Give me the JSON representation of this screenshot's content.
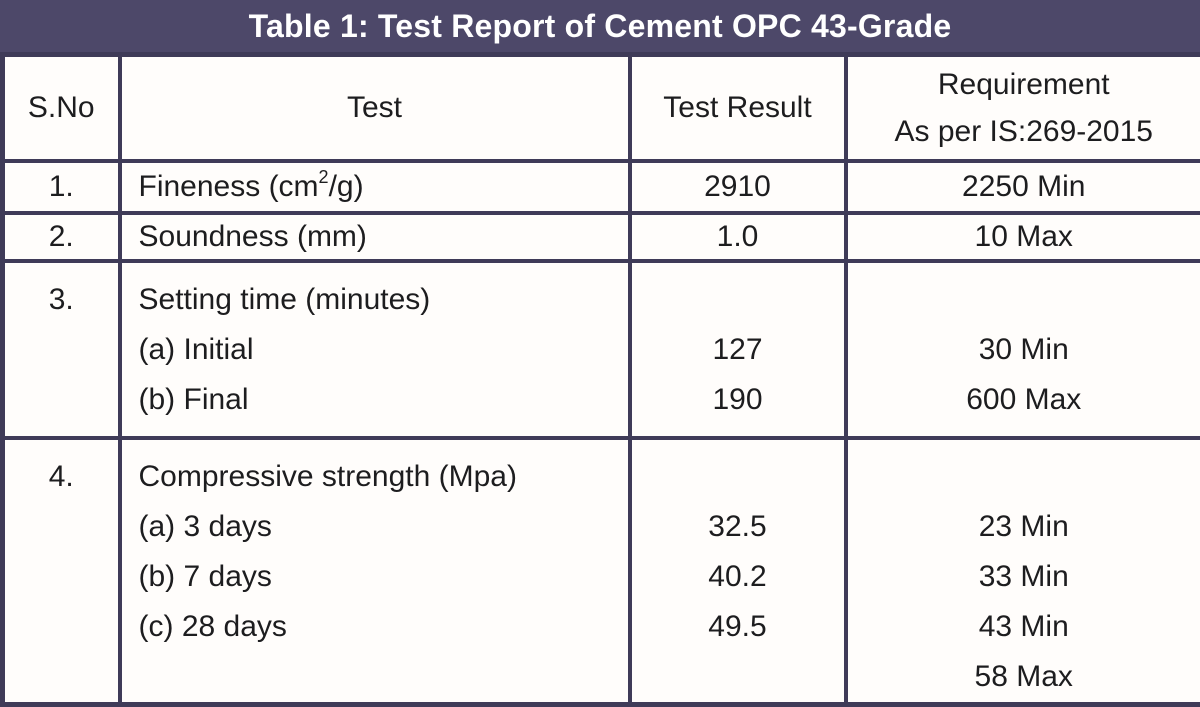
{
  "title": "Table 1: Test Report of Cement OPC 43-Grade",
  "colors": {
    "band": "#4d4869",
    "border": "#3f3b58",
    "text": "#1d1d1f",
    "cell_bg": "#fffdfb",
    "title_text": "#ffffff"
  },
  "header": {
    "sno": "S.No",
    "test": "Test",
    "result": "Test Result",
    "requirement_line1": "Requirement",
    "requirement_line2": "As per IS:269-2015"
  },
  "rows": [
    {
      "sno": "1.",
      "test_prefix": "Fineness (cm",
      "test_superscript": "2",
      "test_suffix": "/g)",
      "result": "2910",
      "requirement": "2250 Min"
    },
    {
      "sno": "2.",
      "test": "Soundness (mm)",
      "result": "1.0",
      "requirement": "10 Max"
    },
    {
      "sno": "3.",
      "test_lines": [
        "Setting time (minutes)",
        "(a) Initial",
        "(b) Final"
      ],
      "result_lines": [
        "",
        "127",
        "190"
      ],
      "requirement_lines": [
        "",
        "30 Min",
        "600 Max"
      ]
    },
    {
      "sno": "4.",
      "test_lines": [
        "Compressive strength (Mpa)",
        "(a) 3 days",
        "(b) 7 days",
        "(c) 28 days"
      ],
      "result_lines": [
        "",
        "32.5",
        "40.2",
        "49.5"
      ],
      "requirement_lines": [
        "",
        "23 Min",
        "33 Min",
        "43 Min",
        "58 Max"
      ]
    }
  ],
  "chart_data": {
    "type": "table",
    "title": "Table 1: Test Report of Cement OPC 43-Grade",
    "columns": [
      "S.No",
      "Test",
      "Test Result",
      "Requirement As per IS:269-2015"
    ],
    "rows": [
      [
        "1.",
        "Fineness (cm²/g)",
        "2910",
        "2250 Min"
      ],
      [
        "2.",
        "Soundness (mm)",
        "1.0",
        "10 Max"
      ],
      [
        "3.",
        "Setting time (minutes): (a) Initial; (b) Final",
        "127; 190",
        "30 Min; 600 Max"
      ],
      [
        "4.",
        "Compressive strength (Mpa): (a) 3 days; (b) 7 days; (c) 28 days",
        "32.5; 40.2; 49.5",
        "23 Min; 33 Min; 43 Min; 58 Max"
      ]
    ]
  }
}
